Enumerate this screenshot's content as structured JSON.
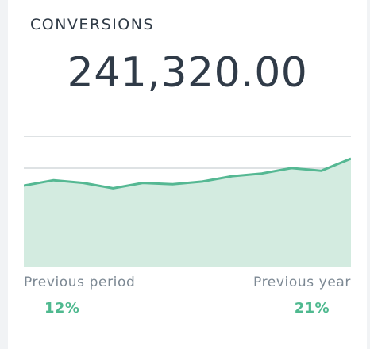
{
  "widget": {
    "title": "CONVERSIONS",
    "value": "241,320.00"
  },
  "comparisons": {
    "previous_period": {
      "label": "Previous period",
      "value": "12%"
    },
    "previous_year": {
      "label": "Previous year",
      "value": "21%"
    }
  },
  "colors": {
    "line": "#55b893",
    "fill": "#d3ebe0",
    "grid": "#d4d8dc",
    "accent_text": "#4fb98f"
  },
  "chart_data": {
    "type": "area",
    "series": [
      {
        "values": [
          60,
          64,
          62,
          58,
          62,
          61,
          63,
          67,
          69,
          73,
          71,
          80
        ]
      }
    ],
    "ylim": [
      0,
      100
    ],
    "grid": true
  }
}
